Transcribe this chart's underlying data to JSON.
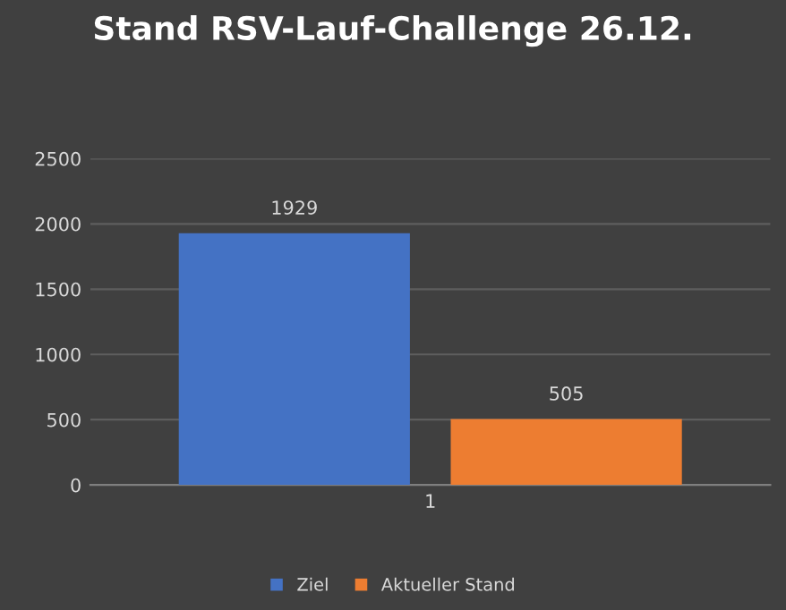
{
  "chart_data": {
    "type": "bar",
    "title": "Stand RSV-Lauf-Challenge 26.12.",
    "categories": [
      "1"
    ],
    "series": [
      {
        "name": "Ziel",
        "color": "#4472c4",
        "values": [
          1929
        ]
      },
      {
        "name": "Aktueller Stand",
        "color": "#ed7d31",
        "values": [
          505
        ]
      }
    ],
    "ylim": [
      0,
      2500
    ],
    "yticks": [
      0,
      500,
      1000,
      1500,
      2000,
      2500
    ],
    "grid": "y",
    "legend": "bottom",
    "data_labels": true
  }
}
